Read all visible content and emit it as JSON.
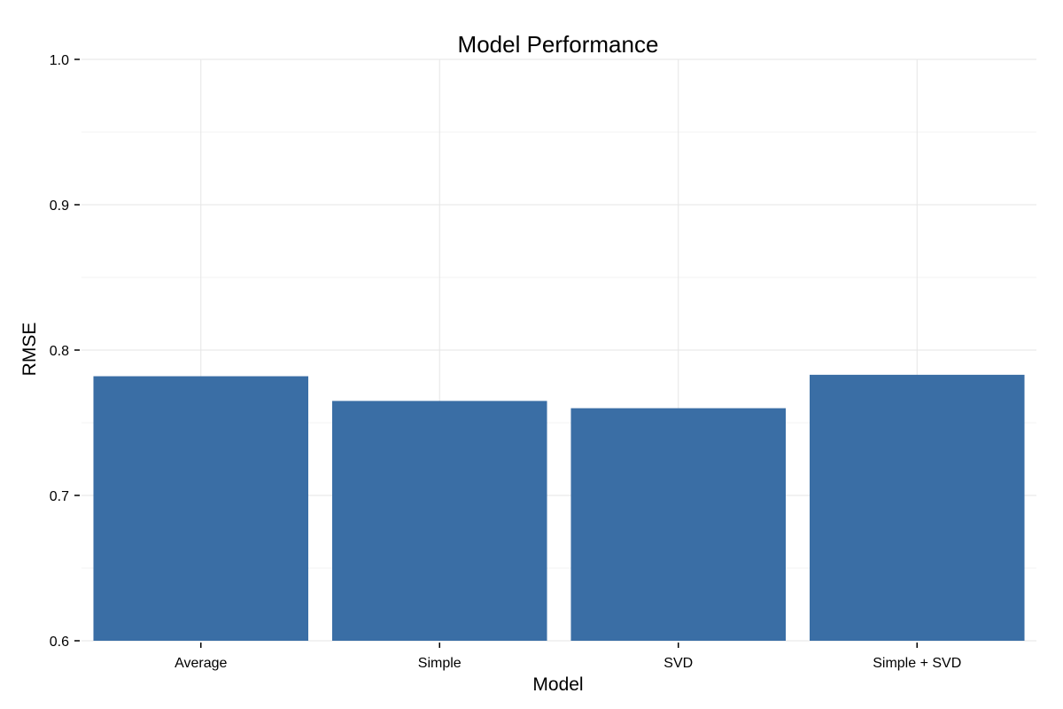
{
  "chart_data": {
    "type": "bar",
    "title": "Model Performance",
    "xlabel": "Model",
    "ylabel": "RMSE",
    "categories": [
      "Average",
      "Simple",
      "SVD",
      "Simple + SVD"
    ],
    "values": [
      0.782,
      0.765,
      0.76,
      0.783
    ],
    "ylim": [
      0.6,
      1.0
    ],
    "yticks": [
      0.6,
      0.7,
      0.8,
      0.9,
      1.0
    ],
    "ytick_labels": [
      "0.6",
      "0.7",
      "0.8",
      "0.9",
      "1.0"
    ],
    "bar_color": "#3a6ea5",
    "grid": true,
    "legend": "none"
  }
}
